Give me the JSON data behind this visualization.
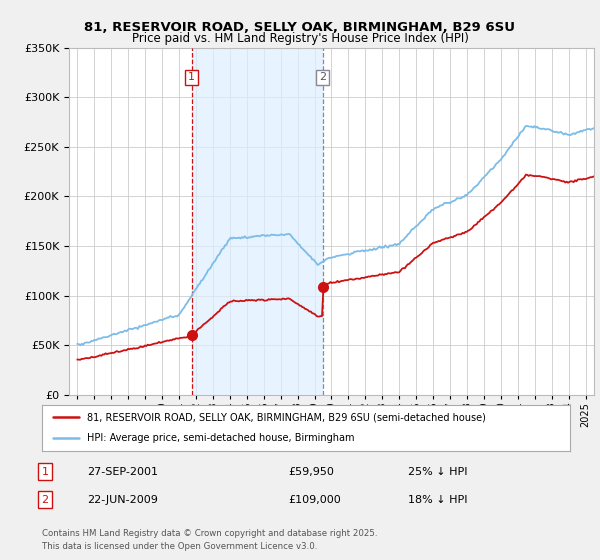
{
  "title_line1": "81, RESERVOIR ROAD, SELLY OAK, BIRMINGHAM, B29 6SU",
  "title_line2": "Price paid vs. HM Land Registry's House Price Index (HPI)",
  "legend_label1": "81, RESERVOIR ROAD, SELLY OAK, BIRMINGHAM, B29 6SU (semi-detached house)",
  "legend_label2": "HPI: Average price, semi-detached house, Birmingham",
  "purchase1_label": "1",
  "purchase1_date": "27-SEP-2001",
  "purchase1_price": "£59,950",
  "purchase1_hpi": "25% ↓ HPI",
  "purchase2_label": "2",
  "purchase2_date": "22-JUN-2009",
  "purchase2_price": "£109,000",
  "purchase2_hpi": "18% ↓ HPI",
  "footnote": "Contains HM Land Registry data © Crown copyright and database right 2025.\nThis data is licensed under the Open Government Licence v3.0.",
  "hpi_color": "#7bbce8",
  "price_color": "#cc1111",
  "shade_color": "#ddeeff",
  "purchase1_x": 2001.74,
  "purchase2_x": 2009.47,
  "ylim_min": 0,
  "ylim_max": 350000,
  "xlim_min": 1994.5,
  "xlim_max": 2025.5,
  "background_color": "#f0f0f0",
  "plot_background": "#ffffff",
  "grid_color": "#cccccc",
  "vline_color": "#aaaacc"
}
